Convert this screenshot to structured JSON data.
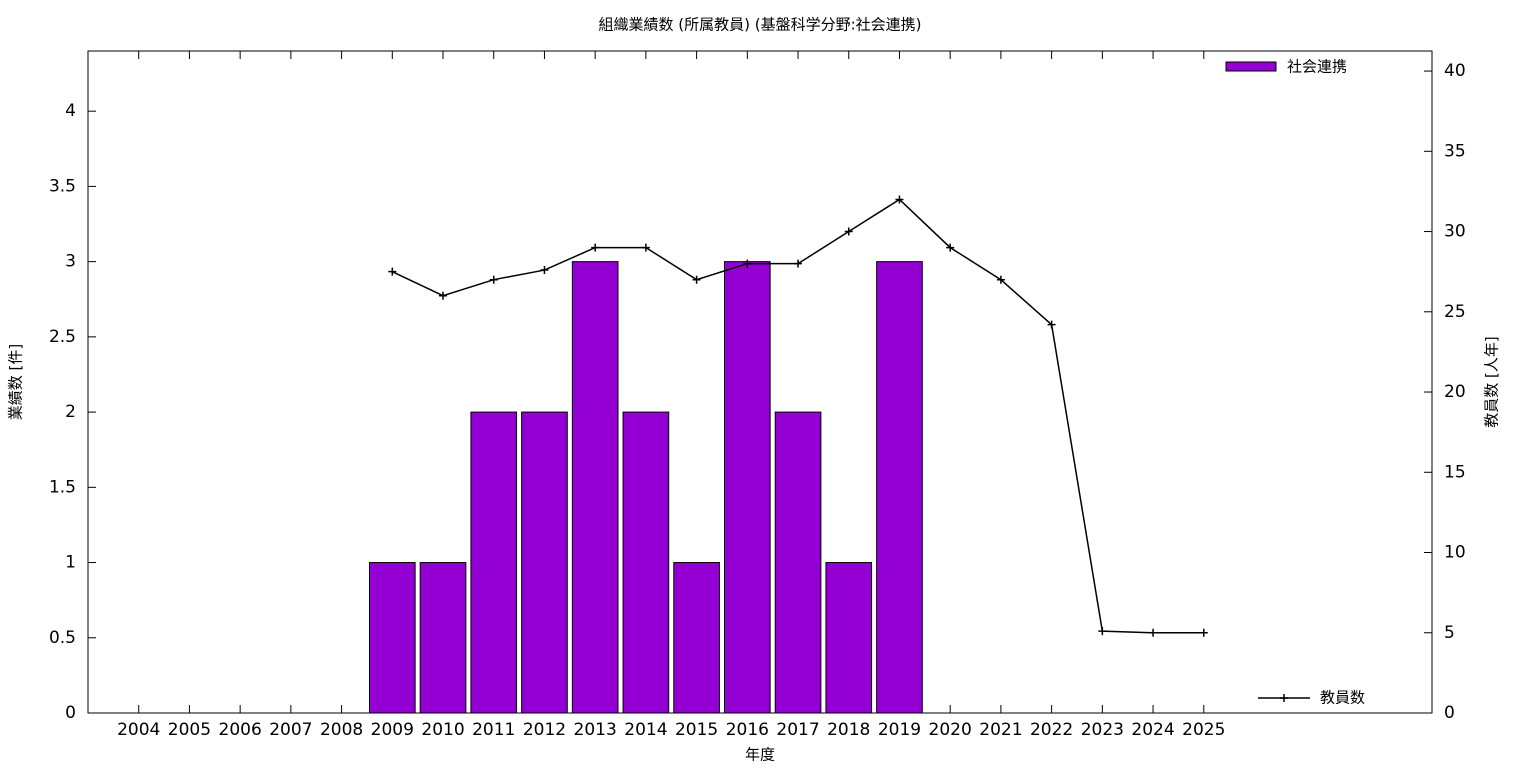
{
  "chart_data": {
    "type": "bar-line",
    "title": "組織業績数 (所属教員) (基盤科学分野:社会連携)",
    "x_label": "年度",
    "y_label": "業績数 [件]",
    "y2_label": "教員数 [人年]",
    "x": [
      2004,
      2005,
      2006,
      2007,
      2008,
      2009,
      2010,
      2011,
      2012,
      2013,
      2014,
      2015,
      2016,
      2017,
      2018,
      2019,
      2020,
      2021,
      2022,
      2023,
      2024,
      2025
    ],
    "xlim": [
      2003,
      2029.5
    ],
    "xticks": [
      2004,
      2005,
      2006,
      2007,
      2008,
      2009,
      2010,
      2011,
      2012,
      2013,
      2014,
      2015,
      2016,
      2017,
      2018,
      2019,
      2020,
      2021,
      2022,
      2023,
      2024,
      2025
    ],
    "ylim": [
      0,
      4.4
    ],
    "yticks": [
      0,
      0.5,
      1,
      1.5,
      2,
      2.5,
      3,
      3.5,
      4
    ],
    "y2lim": [
      0,
      41.25
    ],
    "y2ticks": [
      0,
      5,
      10,
      15,
      20,
      25,
      30,
      35,
      40
    ],
    "series": [
      {
        "name": "社会連携",
        "type": "bar",
        "color": "#9400d3",
        "values": [
          0,
          0,
          0,
          0,
          0,
          1,
          1,
          2,
          2,
          3,
          2,
          1,
          3,
          2,
          1,
          3,
          0,
          0,
          0,
          0,
          0,
          0
        ]
      },
      {
        "name": "教員数",
        "type": "line",
        "axis": "y2",
        "color": "#000000",
        "values": [
          null,
          null,
          null,
          null,
          null,
          27.5,
          26,
          27,
          27.6,
          29,
          29,
          27,
          28,
          28,
          30,
          32,
          29,
          27,
          24.2,
          5.1,
          5,
          5
        ]
      }
    ]
  }
}
